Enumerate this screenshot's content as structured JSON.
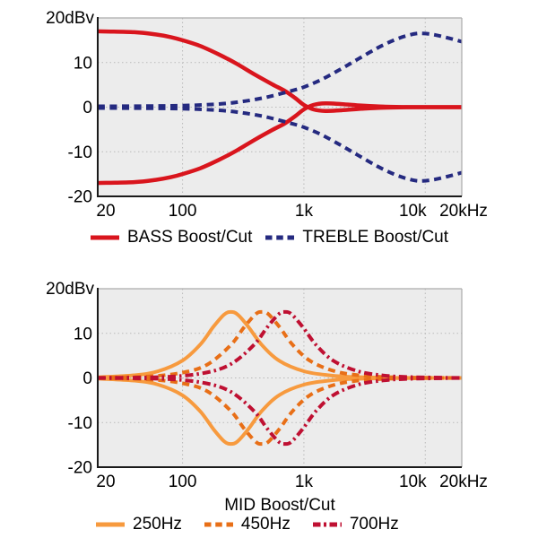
{
  "page": {
    "background": "#ffffff",
    "text_color": "#000000"
  },
  "colors": {
    "plot_bg": "#ececec",
    "grid": "#b9b9b9",
    "axis_dark": "#1a1a1a",
    "border_light": "#ababab",
    "bass_red": "#d9151d",
    "treble_navy": "#252a80",
    "mid_250_orange": "#f79a3e",
    "mid_450_orange": "#e86f17",
    "mid_700_crimson": "#bf1032"
  },
  "chart_data": [
    {
      "type": "line",
      "x_scale": "log",
      "xlim": [
        20,
        20000
      ],
      "ylim": [
        -20,
        20
      ],
      "grid": true,
      "y_unit_label": "20dBv",
      "xlabel": "",
      "y_ticks": [
        {
          "v": 10,
          "label": "10"
        },
        {
          "v": 0,
          "label": "0"
        },
        {
          "v": -10,
          "label": "-10"
        },
        {
          "v": -20,
          "label": "-20"
        }
      ],
      "x_ticks": [
        {
          "f": 20,
          "label": "20",
          "dx": 9
        },
        {
          "f": 100,
          "label": "100",
          "dx": 0
        },
        {
          "f": 1000,
          "label": "1k",
          "dx": 0
        },
        {
          "f": 10000,
          "label": "10k",
          "dx": -14
        },
        {
          "f": 20000,
          "label": "20kHz",
          "dx": 2
        }
      ],
      "series": [
        {
          "name": "BASS Boost/Cut",
          "color": "#d9151d",
          "line_style": "solid",
          "mirrored": true,
          "points_hz_db": [
            [
              20,
              17
            ],
            [
              40,
              16.8
            ],
            [
              60,
              16.3
            ],
            [
              80,
              15.7
            ],
            [
              100,
              15.0
            ],
            [
              140,
              13.7
            ],
            [
              200,
              11.8
            ],
            [
              280,
              9.7
            ],
            [
              400,
              7.2
            ],
            [
              550,
              5.1
            ],
            [
              700,
              3.6
            ],
            [
              850,
              2.0
            ],
            [
              1000,
              0.5
            ],
            [
              1200,
              -0.5
            ],
            [
              1500,
              -0.85
            ],
            [
              2000,
              -0.7
            ],
            [
              3000,
              -0.35
            ],
            [
              4500,
              -0.12
            ],
            [
              7000,
              -0.02
            ],
            [
              12000,
              0
            ],
            [
              20000,
              0
            ]
          ]
        },
        {
          "name": "TREBLE Boost/Cut",
          "color": "#252a80",
          "line_style": "dashed",
          "mirrored": true,
          "points_hz_db": [
            [
              20,
              0.2
            ],
            [
              50,
              0.25
            ],
            [
              100,
              0.35
            ],
            [
              200,
              0.7
            ],
            [
              300,
              1.2
            ],
            [
              450,
              2.0
            ],
            [
              600,
              2.8
            ],
            [
              800,
              3.7
            ],
            [
              1000,
              4.5
            ],
            [
              1400,
              6.2
            ],
            [
              2000,
              8.5
            ],
            [
              2800,
              10.8
            ],
            [
              4000,
              13.2
            ],
            [
              5500,
              15.0
            ],
            [
              7000,
              16.0
            ],
            [
              8500,
              16.5
            ],
            [
              10000,
              16.5
            ],
            [
              12000,
              16.2
            ],
            [
              15000,
              15.6
            ],
            [
              20000,
              14.7
            ]
          ]
        }
      ]
    },
    {
      "type": "line",
      "x_scale": "log",
      "xlim": [
        20,
        20000
      ],
      "ylim": [
        -20,
        20
      ],
      "grid": true,
      "y_unit_label": "20dBv",
      "xlabel": "MID Boost/Cut",
      "y_ticks": [
        {
          "v": 10,
          "label": "10"
        },
        {
          "v": 0,
          "label": "0"
        },
        {
          "v": -10,
          "label": "-10"
        },
        {
          "v": -20,
          "label": "-20"
        }
      ],
      "x_ticks": [
        {
          "f": 20,
          "label": "20",
          "dx": 9
        },
        {
          "f": 100,
          "label": "100",
          "dx": 0
        },
        {
          "f": 1000,
          "label": "1k",
          "dx": 0
        },
        {
          "f": 10000,
          "label": "10k",
          "dx": -14
        },
        {
          "f": 20000,
          "label": "20kHz",
          "dx": 2
        }
      ],
      "series": [
        {
          "name": "250Hz",
          "color": "#f79a3e",
          "line_style": "solid",
          "mirrored": true,
          "points_hz_db": [
            [
              20,
              0.15
            ],
            [
              40,
              0.6
            ],
            [
              63,
              1.5
            ],
            [
              100,
              3.9
            ],
            [
              140,
              7.5
            ],
            [
              180,
              11.5
            ],
            [
              220,
              14.2
            ],
            [
              250,
              14.8
            ],
            [
              285,
              14.2
            ],
            [
              350,
              11.4
            ],
            [
              450,
              7.4
            ],
            [
              630,
              3.8
            ],
            [
              1000,
              1.5
            ],
            [
              1600,
              0.6
            ],
            [
              2500,
              0.23
            ],
            [
              5000,
              0.06
            ],
            [
              10000,
              0.02
            ],
            [
              20000,
              0
            ]
          ]
        },
        {
          "name": "450Hz",
          "color": "#e86f17",
          "line_style": "dashed",
          "mirrored": true,
          "points_hz_db": [
            [
              20,
              0.05
            ],
            [
              50,
              0.3
            ],
            [
              100,
              1.2
            ],
            [
              160,
              3.0
            ],
            [
              250,
              7.4
            ],
            [
              320,
              11.3
            ],
            [
              400,
              14.3
            ],
            [
              450,
              14.8
            ],
            [
              510,
              14.3
            ],
            [
              630,
              11.4
            ],
            [
              810,
              7.4
            ],
            [
              1130,
              3.8
            ],
            [
              1800,
              1.5
            ],
            [
              2900,
              0.56
            ],
            [
              4500,
              0.23
            ],
            [
              9000,
              0.06
            ],
            [
              20000,
              0.01
            ]
          ]
        },
        {
          "name": "700Hz",
          "color": "#bf1032",
          "line_style": "dashdot",
          "mirrored": true,
          "points_hz_db": [
            [
              20,
              0.02
            ],
            [
              70,
              0.23
            ],
            [
              150,
              1.1
            ],
            [
              250,
              3.1
            ],
            [
              390,
              7.5
            ],
            [
              500,
              11.4
            ],
            [
              620,
              14.3
            ],
            [
              700,
              14.8
            ],
            [
              790,
              14.3
            ],
            [
              980,
              11.4
            ],
            [
              1260,
              7.4
            ],
            [
              1760,
              3.8
            ],
            [
              2800,
              1.5
            ],
            [
              4500,
              0.56
            ],
            [
              7000,
              0.23
            ],
            [
              14000,
              0.06
            ],
            [
              20000,
              0.02
            ]
          ]
        }
      ]
    }
  ]
}
